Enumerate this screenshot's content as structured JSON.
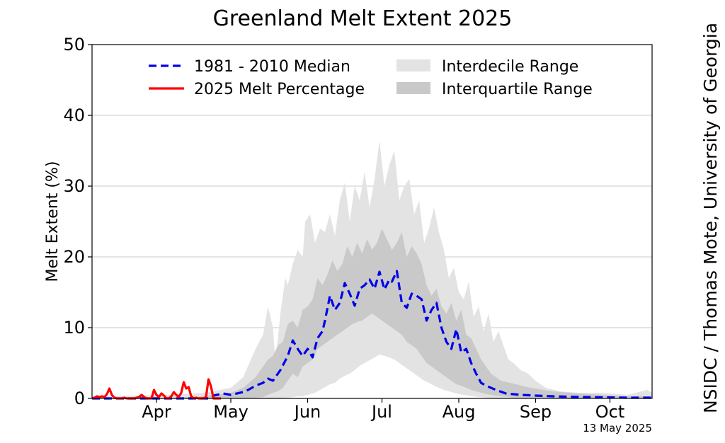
{
  "chart_data": {
    "type": "line",
    "title": "Greenland Melt Extent 2025",
    "ylabel": "Melt Extent (%)",
    "xlabel": "",
    "ylim": [
      0,
      50
    ],
    "xlim_day_of_year": [
      79,
      305
    ],
    "grid": "horizontal",
    "legend_placement": "top",
    "y_ticks": [
      "0",
      "10",
      "20",
      "30",
      "40",
      "50"
    ],
    "x_ticks": [
      {
        "label": "Apr",
        "day": 105
      },
      {
        "label": "May",
        "day": 135
      },
      {
        "label": "Jun",
        "day": 166
      },
      {
        "label": "Jul",
        "day": 196
      },
      {
        "label": "Aug",
        "day": 227
      },
      {
        "label": "Sep",
        "day": 258
      },
      {
        "label": "Oct",
        "day": 288
      }
    ],
    "legend": [
      {
        "label": "1981 - 2010 Median",
        "style": "dashed",
        "color": "#0000ee"
      },
      {
        "label": "2025 Melt Percentage",
        "style": "solid",
        "color": "#ff0000"
      },
      {
        "label": "Interdecile Range",
        "style": "fill",
        "color": "#e3e3e3"
      },
      {
        "label": "Interquartile Range",
        "style": "fill",
        "color": "#c9c9c9"
      }
    ],
    "series": [
      {
        "name": "1981 - 2010 Median",
        "x_day_of_year": [
          79,
          95,
          110,
          120,
          126,
          128,
          132,
          135,
          140,
          142,
          145,
          148,
          150,
          152,
          155,
          158,
          160,
          162,
          164,
          166,
          168,
          170,
          172,
          173,
          175,
          177,
          179,
          181,
          183,
          185,
          187,
          189,
          191,
          193,
          195,
          197,
          199,
          200,
          202,
          204,
          206,
          208,
          210,
          212,
          214,
          216,
          218,
          220,
          222,
          224,
          226,
          228,
          230,
          232,
          234,
          236,
          238,
          240,
          242,
          246,
          252,
          258,
          265,
          275,
          285,
          295,
          305
        ],
        "values": [
          0,
          0,
          0,
          0,
          0,
          0.4,
          0.7,
          0.5,
          0.9,
          1.2,
          1.8,
          2.2,
          2.8,
          2.5,
          4,
          6,
          8.2,
          7,
          6,
          7,
          5.8,
          8.5,
          9.5,
          11,
          14.5,
          12.5,
          13.5,
          16.3,
          14.8,
          13.1,
          15.5,
          16,
          16.8,
          15.5,
          17.9,
          15.4,
          16.8,
          16.5,
          18,
          13.5,
          12.8,
          14.8,
          14.5,
          14,
          11,
          12.5,
          13.5,
          10,
          8,
          7,
          9.8,
          6.5,
          7,
          5,
          3.5,
          2.2,
          1.8,
          1.5,
          1.2,
          0.7,
          0.5,
          0.4,
          0.3,
          0.2,
          0.15,
          0.1,
          0.1
        ]
      },
      {
        "name": "2025 Melt Percentage",
        "x_day_of_year": [
          79,
          80,
          81,
          82,
          83,
          84,
          85,
          86,
          87,
          88,
          89,
          90,
          91,
          92,
          93,
          94,
          95,
          96,
          97,
          98,
          99,
          100,
          101,
          102,
          103,
          104,
          105,
          106,
          107,
          108,
          109,
          110,
          111,
          112,
          113,
          114,
          115,
          116,
          117,
          118,
          119,
          120,
          121,
          122,
          123,
          124,
          125,
          126,
          127,
          128,
          129,
          130,
          131
        ],
        "values": [
          0,
          0.1,
          0.3,
          0.2,
          0.3,
          0.2,
          0.6,
          1.4,
          0.5,
          0.1,
          0,
          0,
          0,
          0.1,
          0,
          0,
          0,
          0,
          0.1,
          0.2,
          0.5,
          0.2,
          0,
          0,
          0,
          1.2,
          0.5,
          0.2,
          0.7,
          0.4,
          0,
          0,
          0.3,
          0.9,
          0.5,
          0.2,
          0.8,
          2.3,
          1.4,
          1.6,
          0.3,
          0,
          0.1,
          0,
          0,
          0,
          0.2,
          2.7,
          1.7,
          0,
          0,
          0,
          0
        ]
      }
    ],
    "bands": [
      {
        "name": "Interdecile Range",
        "x_day_of_year": [
          79,
          110,
          125,
          135,
          140,
          145,
          148,
          150,
          152,
          153,
          155,
          157,
          158,
          160,
          162,
          164,
          165,
          167,
          169,
          171,
          173,
          175,
          177,
          179,
          181,
          183,
          185,
          187,
          189,
          191,
          193,
          195,
          197,
          199,
          201,
          203,
          205,
          207,
          209,
          211,
          213,
          215,
          217,
          219,
          221,
          223,
          225,
          227,
          229,
          231,
          233,
          235,
          237,
          239,
          241,
          243,
          245,
          247,
          249,
          252,
          255,
          258,
          262,
          268,
          275,
          285,
          295,
          303,
          305
        ],
        "upper": [
          0.3,
          0.5,
          0.8,
          1.5,
          3,
          7,
          9,
          13,
          10,
          5,
          12,
          17,
          16,
          19,
          21,
          20,
          25,
          26,
          22,
          24,
          23.5,
          26,
          23,
          28,
          30.5,
          25,
          30,
          28,
          32,
          27,
          31,
          36.4,
          30,
          33,
          35,
          28,
          30,
          31,
          26,
          28,
          22,
          24,
          27,
          23.5,
          21,
          17,
          18.5,
          15,
          14,
          16.5,
          11.5,
          13,
          9.5,
          12,
          8,
          9.5,
          7.5,
          5.5,
          5,
          4,
          3.5,
          2.5,
          1.5,
          1,
          0.8,
          0.8,
          0.5,
          1.2,
          0.8
        ],
        "lower": [
          0,
          0,
          0,
          0,
          0,
          0,
          0,
          0,
          0,
          0,
          0,
          0.1,
          0.1,
          0.2,
          0.3,
          0.3,
          0.4,
          0.6,
          0.8,
          1.2,
          1.6,
          2,
          2.2,
          2.8,
          3.2,
          3.5,
          4,
          4.6,
          5,
          5.4,
          5.8,
          6.2,
          6,
          5.8,
          5.5,
          5,
          4.5,
          4,
          3.5,
          3,
          2.5,
          2.2,
          1.8,
          1.5,
          1.2,
          1,
          0.8,
          0.6,
          0.5,
          0.4,
          0.3,
          0.2,
          0.15,
          0.1,
          0.1,
          0,
          0,
          0,
          0,
          0,
          0,
          0,
          0,
          0,
          0,
          0,
          0,
          0,
          0
        ]
      },
      {
        "name": "Interquartile Range",
        "x_day_of_year": [
          79,
          110,
          125,
          135,
          140,
          145,
          148,
          150,
          152,
          154,
          156,
          158,
          160,
          162,
          164,
          166,
          168,
          170,
          172,
          174,
          176,
          178,
          180,
          182,
          184,
          186,
          188,
          190,
          192,
          194,
          196,
          198,
          200,
          202,
          204,
          206,
          208,
          210,
          212,
          214,
          216,
          218,
          220,
          222,
          224,
          226,
          228,
          230,
          232,
          234,
          236,
          238,
          240,
          244,
          250,
          256,
          265,
          275,
          285,
          295,
          305
        ],
        "upper": [
          0,
          0.1,
          0.3,
          0.8,
          1.5,
          3,
          4.5,
          5.5,
          6,
          7.5,
          8,
          10.5,
          11,
          10,
          12.5,
          13,
          14,
          17,
          16,
          17.5,
          19.5,
          18,
          19,
          21.5,
          20,
          22,
          20.5,
          22.5,
          21,
          22,
          24,
          22.5,
          21,
          22,
          23.5,
          20,
          21.5,
          20.5,
          19,
          16,
          14.5,
          15.5,
          13,
          12,
          13.5,
          11,
          12.5,
          9,
          8.5,
          7,
          5.5,
          4.5,
          3.5,
          2.5,
          2,
          1.5,
          1,
          0.7,
          0.5,
          0.3,
          0.3
        ],
        "lower": [
          0,
          0,
          0,
          0,
          0,
          0.1,
          0.2,
          0.5,
          0.8,
          1,
          1.5,
          2.5,
          3.5,
          3,
          4.5,
          5,
          5.5,
          7,
          7.5,
          8,
          8.5,
          9,
          9.5,
          10,
          10.5,
          10.8,
          11,
          11.5,
          12,
          11.5,
          11,
          10.5,
          10,
          9.5,
          9,
          8,
          7.5,
          7,
          6,
          5,
          4.5,
          4,
          3.5,
          3,
          2.5,
          2,
          1.8,
          1.5,
          1.2,
          1,
          0.8,
          0.6,
          0.5,
          0.3,
          0.1,
          0.05,
          0,
          0,
          0,
          0,
          0
        ]
      }
    ],
    "credit": "NSIDC / Thomas Mote, University of Georgia",
    "date_stamp": "13 May 2025"
  }
}
